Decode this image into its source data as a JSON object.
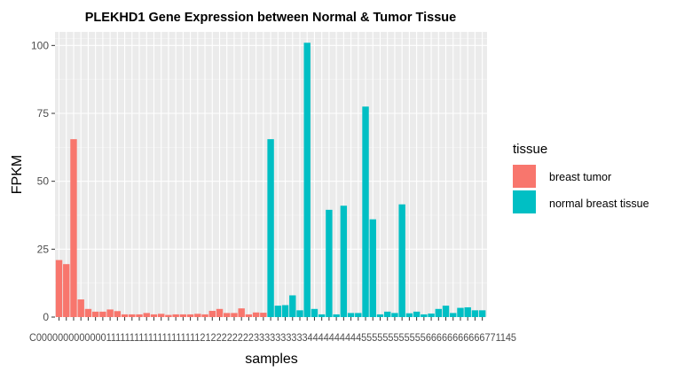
{
  "chart_data": {
    "type": "bar",
    "title": "PLEKHD1 Gene Expression between Normal & Tumor Tissue",
    "xlabel": "samples",
    "ylabel": "FPKM",
    "ylim": [
      0,
      105
    ],
    "yticks": [
      0,
      25,
      50,
      75,
      100
    ],
    "grid": true,
    "legend_position": "right",
    "legend_title": "tissue",
    "series": [
      {
        "name": "breast tumor",
        "color": "#F8766D",
        "values": [
          21,
          19.5,
          65.5,
          6.5,
          3,
          2,
          2,
          2.8,
          2.2,
          1,
          1,
          1,
          1.5,
          1,
          1.2,
          0.8,
          1,
          1,
          1,
          1.2,
          1,
          2.3,
          3,
          1.5,
          1.5,
          3.2,
          1,
          1.7,
          1.6
        ]
      },
      {
        "name": "normal breast tissue",
        "color": "#00BFC4",
        "values": [
          65.5,
          4.2,
          4.4,
          8,
          2.5,
          101,
          3,
          1,
          39.5,
          1,
          41,
          1.5,
          1.5,
          77.5,
          36,
          1,
          2,
          1.5,
          41.5,
          1.4,
          2,
          1,
          1.3,
          3,
          4.2,
          1.5,
          3.4,
          3.6,
          2.5,
          2.5
        ]
      }
    ],
    "x_tick_labels_text": "C00000000000001111111111111111111121222222223333333333444444444455555555555566666666666771145"
  }
}
